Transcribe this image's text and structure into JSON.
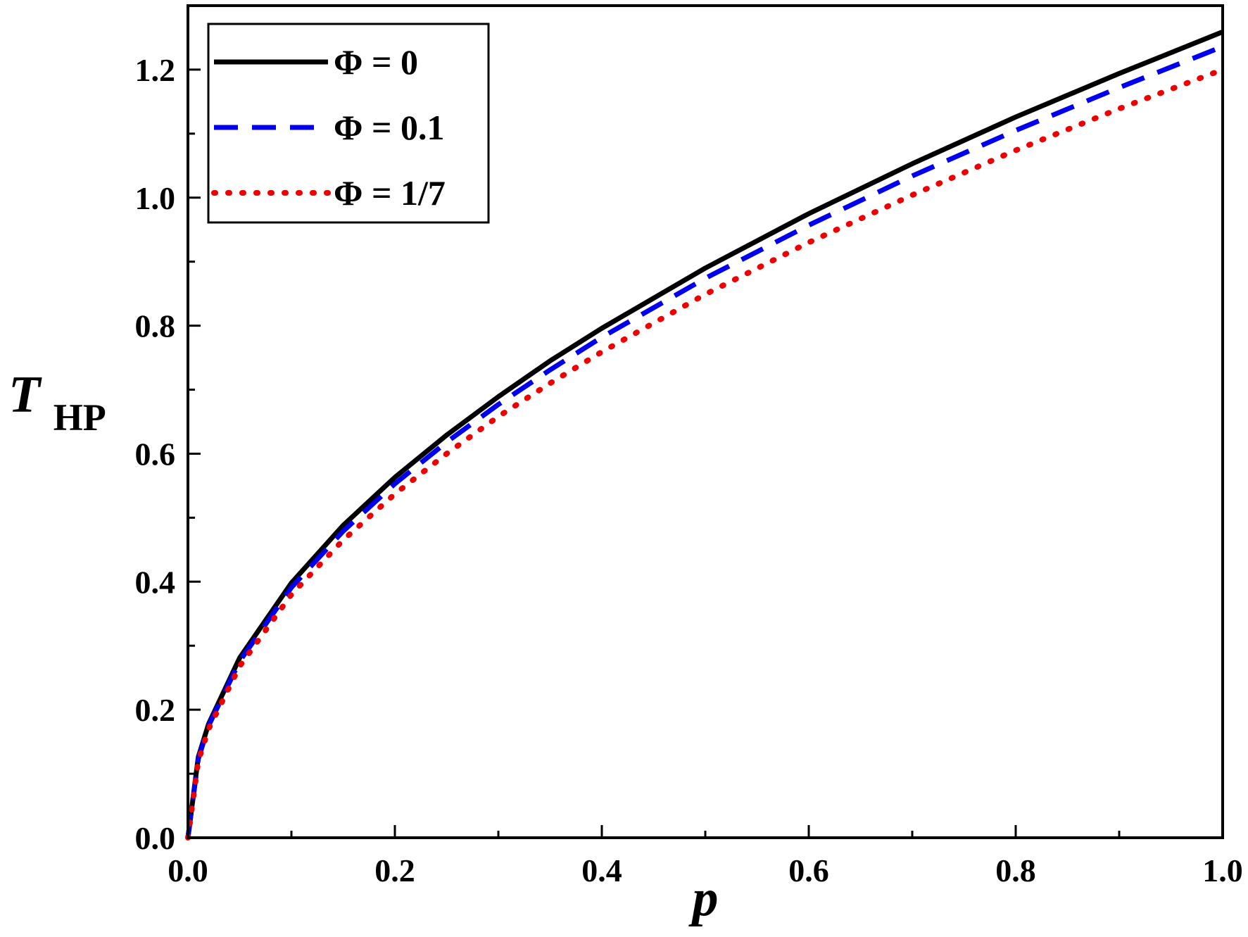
{
  "chart_data": {
    "type": "line",
    "x_axis": {
      "label": "p",
      "range": [
        0.0,
        1.0
      ],
      "ticks": [
        "0.0",
        "0.2",
        "0.4",
        "0.6",
        "0.8",
        "1.0"
      ],
      "tick_values": [
        0.0,
        0.2,
        0.4,
        0.6,
        0.8,
        1.0
      ]
    },
    "y_axis": {
      "label": "T",
      "label_subscript": "HP",
      "range": [
        0.0,
        1.3
      ],
      "ticks": [
        "0.0",
        "0.2",
        "0.4",
        "0.6",
        "0.8",
        "1.0",
        "1.2"
      ],
      "tick_values": [
        0.0,
        0.2,
        0.4,
        0.6,
        0.8,
        1.0,
        1.2
      ]
    },
    "grid": false,
    "legend": {
      "position": "top-left"
    },
    "series": [
      {
        "name": "Φ = 0",
        "color": "#000000",
        "style": "solid",
        "points": [
          [
            0.0,
            0.0
          ],
          [
            0.01,
            0.126
          ],
          [
            0.02,
            0.178
          ],
          [
            0.05,
            0.281
          ],
          [
            0.1,
            0.398
          ],
          [
            0.15,
            0.488
          ],
          [
            0.2,
            0.563
          ],
          [
            0.25,
            0.629
          ],
          [
            0.3,
            0.689
          ],
          [
            0.35,
            0.745
          ],
          [
            0.4,
            0.796
          ],
          [
            0.5,
            0.89
          ],
          [
            0.6,
            0.975
          ],
          [
            0.7,
            1.053
          ],
          [
            0.8,
            1.126
          ],
          [
            0.9,
            1.194
          ],
          [
            1.0,
            1.259
          ]
        ]
      },
      {
        "name": "Φ = 0.1",
        "color": "#0000ee",
        "style": "dashed",
        "points": [
          [
            0.0,
            0.0
          ],
          [
            0.01,
            0.123
          ],
          [
            0.02,
            0.175
          ],
          [
            0.05,
            0.276
          ],
          [
            0.1,
            0.391
          ],
          [
            0.15,
            0.479
          ],
          [
            0.2,
            0.553
          ],
          [
            0.25,
            0.618
          ],
          [
            0.3,
            0.677
          ],
          [
            0.35,
            0.731
          ],
          [
            0.4,
            0.782
          ],
          [
            0.5,
            0.874
          ],
          [
            0.6,
            0.957
          ],
          [
            0.7,
            1.034
          ],
          [
            0.8,
            1.105
          ],
          [
            0.9,
            1.172
          ],
          [
            1.0,
            1.236
          ]
        ]
      },
      {
        "name": "Φ = 1/7",
        "color": "#ee0000",
        "style": "dotted",
        "points": [
          [
            0.0,
            0.0
          ],
          [
            0.01,
            0.12
          ],
          [
            0.02,
            0.17
          ],
          [
            0.05,
            0.268
          ],
          [
            0.1,
            0.38
          ],
          [
            0.15,
            0.465
          ],
          [
            0.2,
            0.537
          ],
          [
            0.25,
            0.6
          ],
          [
            0.3,
            0.658
          ],
          [
            0.35,
            0.71
          ],
          [
            0.4,
            0.759
          ],
          [
            0.5,
            0.849
          ],
          [
            0.6,
            0.93
          ],
          [
            0.7,
            1.004
          ],
          [
            0.8,
            1.074
          ],
          [
            0.9,
            1.139
          ],
          [
            1.0,
            1.2
          ]
        ]
      }
    ]
  }
}
